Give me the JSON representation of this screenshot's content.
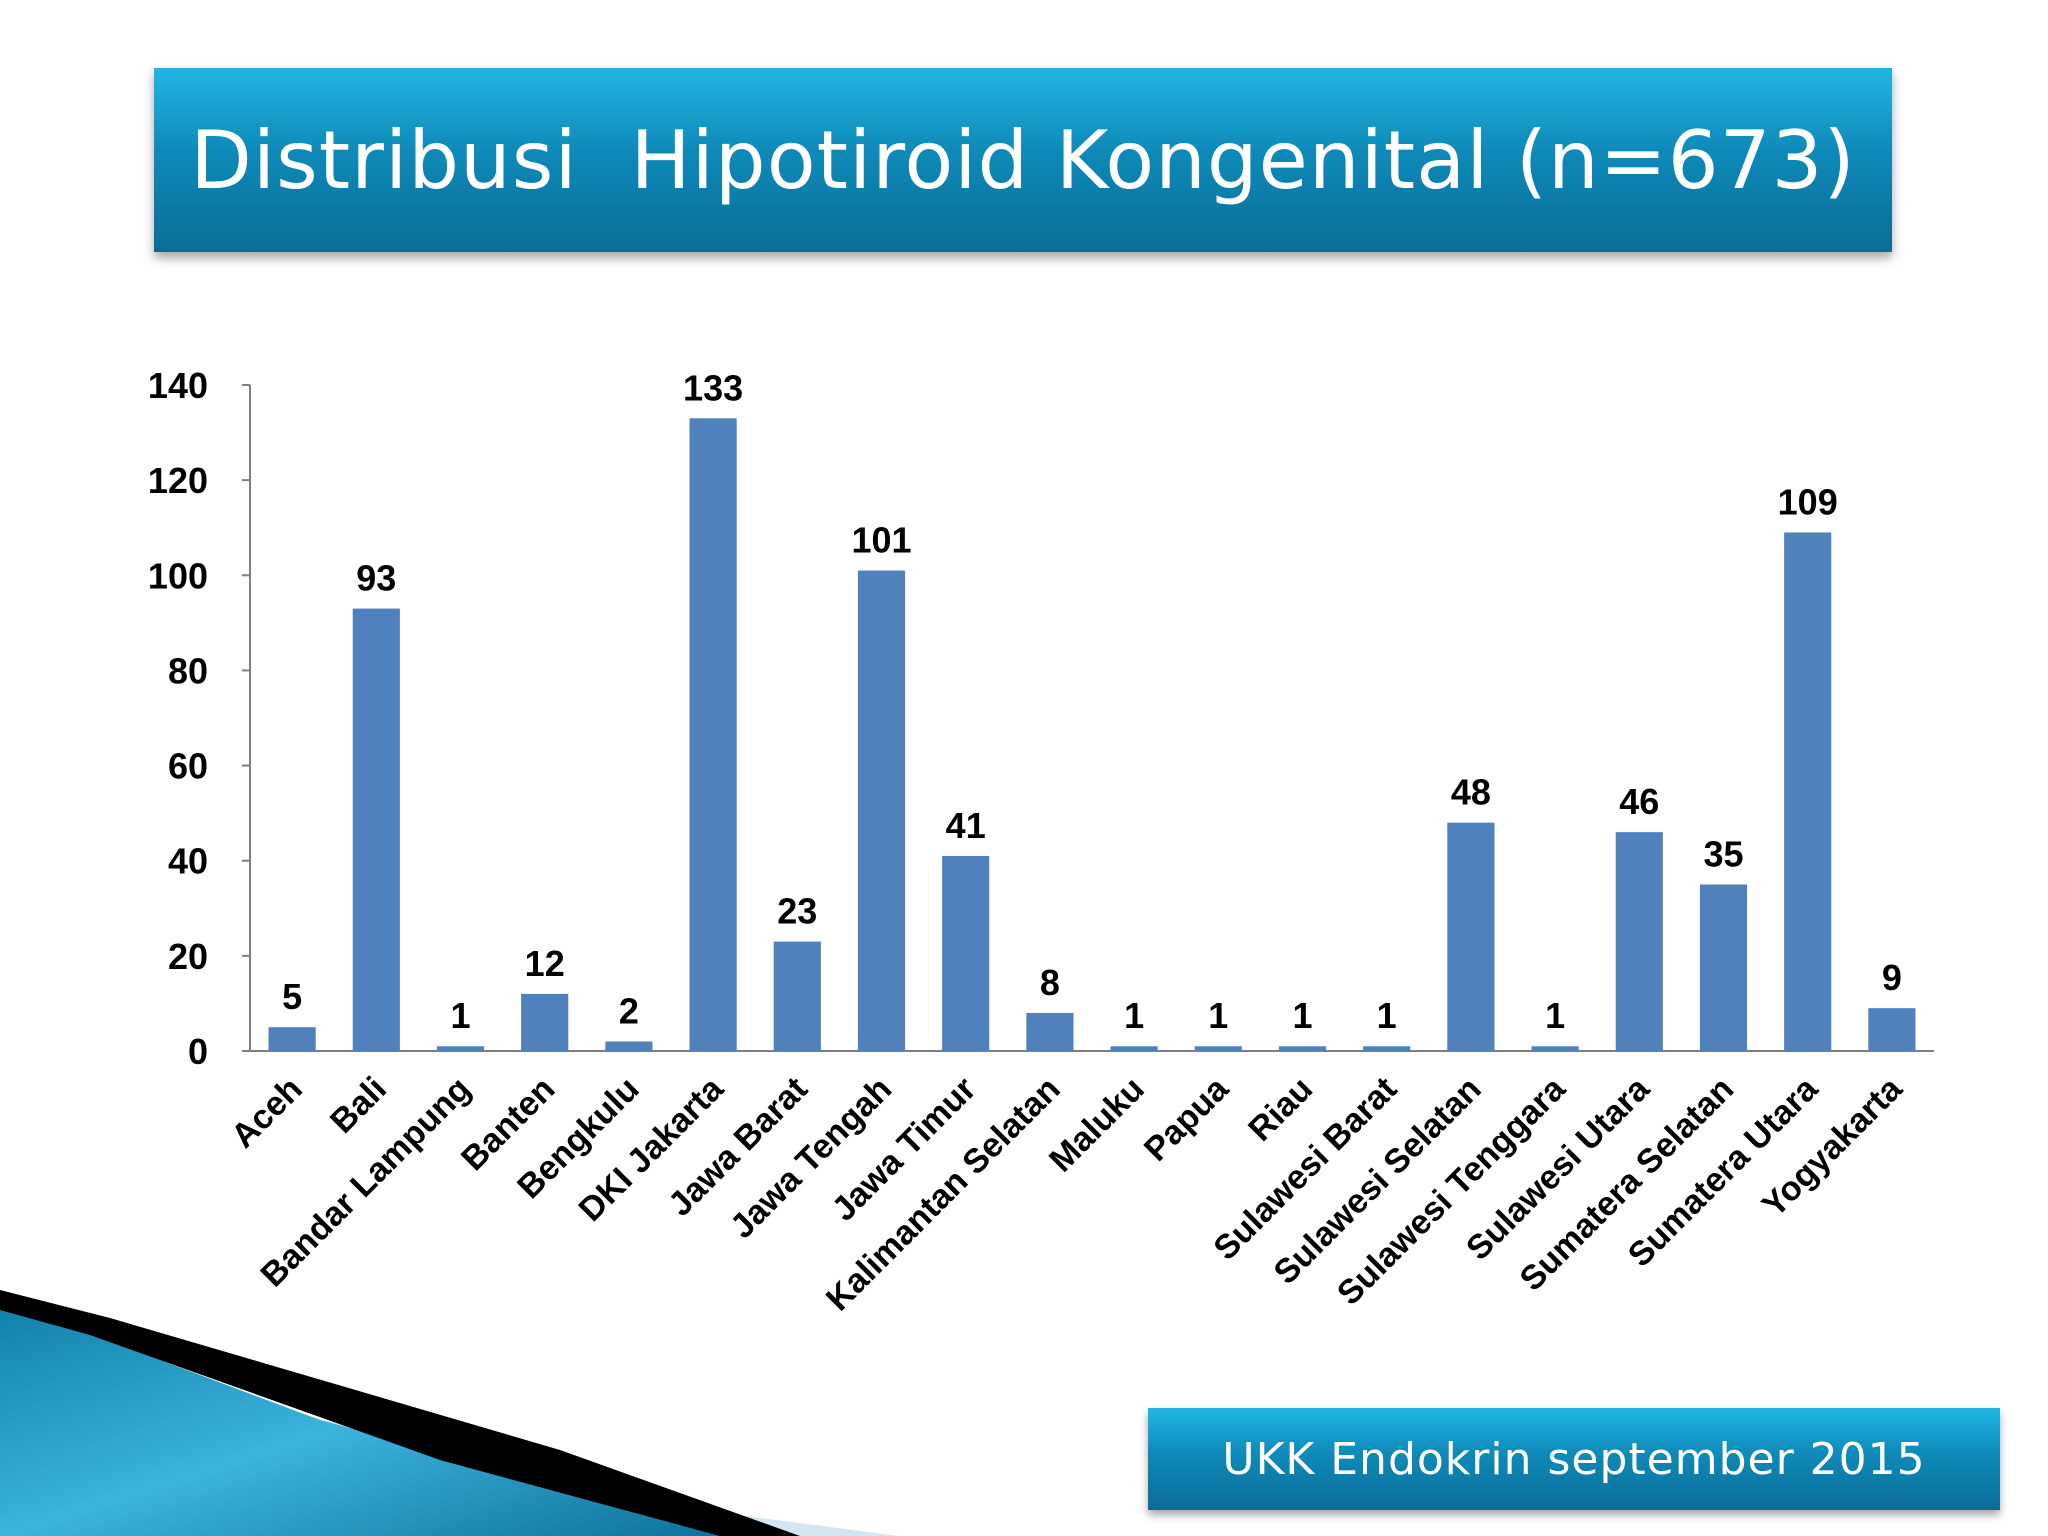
{
  "slide": {
    "title": "Distribusi  Hipotiroid Kongenital (n=673)",
    "source": "UKK Endokrin september 2015"
  },
  "colors": {
    "bar": "#4f81bd",
    "banner_top": "#22b6e2",
    "banner_bottom": "#0a6d97"
  },
  "chart_data": {
    "type": "bar",
    "title": "",
    "xlabel": "",
    "ylabel": "",
    "ylim": [
      0,
      140
    ],
    "yticks": [
      0,
      20,
      40,
      60,
      80,
      100,
      120,
      140
    ],
    "grid": false,
    "legend": "none",
    "categories": [
      "Aceh",
      "Bali",
      "Bandar Lampung",
      "Banten",
      "Bengkulu",
      "DKI Jakarta",
      "Jawa Barat",
      "Jawa Tengah",
      "Jawa Timur",
      "Kalimantan Selatan",
      "Maluku",
      "Papua",
      "Riau",
      "Sulawesi Barat",
      "Sulawesi Selatan",
      "Sulawesi Tenggara",
      "Sulawesi Utara",
      "Sumatera Selatan",
      "Sumatera Utara",
      "Yogyakarta"
    ],
    "values": [
      5,
      93,
      1,
      12,
      2,
      133,
      23,
      101,
      41,
      8,
      1,
      1,
      1,
      1,
      48,
      1,
      46,
      35,
      109,
      9
    ]
  }
}
